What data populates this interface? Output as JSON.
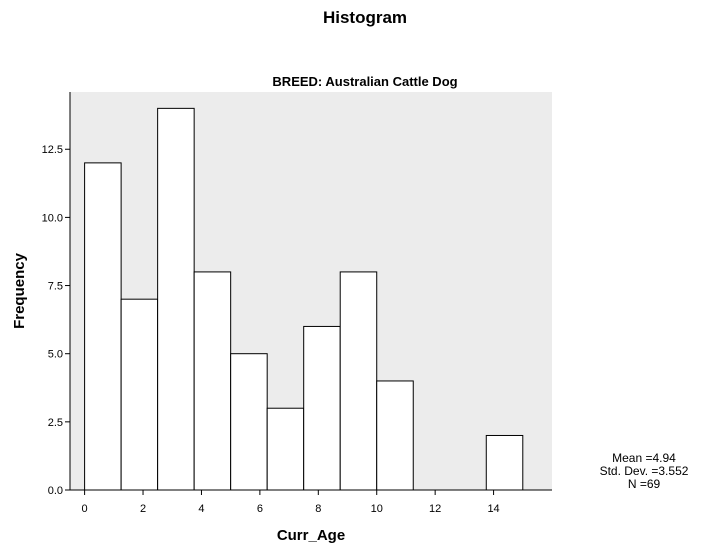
{
  "page": {
    "title": "Histogram"
  },
  "chart_data": {
    "type": "bar",
    "subtitle": "BREED: Australian Cattle Dog",
    "xlabel": "Curr_Age",
    "ylabel": "Frequency",
    "x_ticks": [
      0,
      2,
      4,
      6,
      8,
      10,
      12,
      14
    ],
    "y_ticks": [
      "0.0",
      "2.5",
      "5.0",
      "7.5",
      "10.0",
      "12.5"
    ],
    "xlim": [
      -0.5,
      16
    ],
    "ylim": [
      0,
      14.6
    ],
    "bin_width": 1.25,
    "bins": [
      {
        "start": 0.0,
        "end": 1.25,
        "value": 12
      },
      {
        "start": 1.25,
        "end": 2.5,
        "value": 7
      },
      {
        "start": 2.5,
        "end": 3.75,
        "value": 14
      },
      {
        "start": 3.75,
        "end": 5.0,
        "value": 8
      },
      {
        "start": 5.0,
        "end": 6.25,
        "value": 5
      },
      {
        "start": 6.25,
        "end": 7.5,
        "value": 3
      },
      {
        "start": 7.5,
        "end": 8.75,
        "value": 6
      },
      {
        "start": 8.75,
        "end": 10.0,
        "value": 8
      },
      {
        "start": 10.0,
        "end": 11.25,
        "value": 4
      },
      {
        "start": 11.25,
        "end": 12.5,
        "value": 0
      },
      {
        "start": 12.5,
        "end": 13.75,
        "value": 0
      },
      {
        "start": 13.75,
        "end": 15.0,
        "value": 2
      }
    ],
    "stats": {
      "mean": "Mean =4.94",
      "std": "Std. Dev. =3.552",
      "n": "N =69"
    },
    "colors": {
      "plot_bg": "#ececec",
      "bar_fill": "#ffffff",
      "bar_stroke": "#000000"
    }
  }
}
